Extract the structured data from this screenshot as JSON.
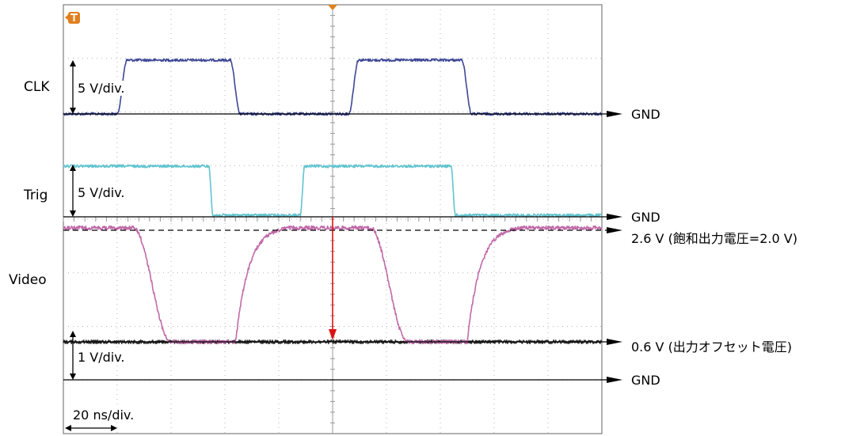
{
  "chart_data": {
    "type": "line",
    "title": "",
    "time_scale_label": "20 ns/div.",
    "channels": [
      {
        "name": "CLK",
        "scale_label": "5 V/div.",
        "color": "#3d4796"
      },
      {
        "name": "Trig",
        "scale_label": "5 V/div.",
        "color": "#62c4cf"
      },
      {
        "name": "Video",
        "scale_label": "1 V/div.",
        "color": "#c06aa8",
        "offset_color": "#333333"
      }
    ],
    "reference_levels": [
      {
        "label": "GND",
        "channel": "CLK"
      },
      {
        "label": "GND",
        "channel": "Trig"
      },
      {
        "label": "2.6 V (飽和出力電圧=2.0 V)",
        "channel": "Video",
        "dashed": true
      },
      {
        "label": "0.6 V (出力オフセット電圧)",
        "channel": "Video"
      },
      {
        "label": "GND",
        "channel": "Video"
      }
    ],
    "grid": true,
    "divisions": {
      "x": 10,
      "y": 8
    },
    "trigger_color": "#e08020",
    "marker_color": "#dd1111",
    "clk_transitions_div": {
      "rise": [
        1.0,
        5.3
      ],
      "fall": [
        3.1,
        7.4
      ]
    },
    "trig_transitions_div": {
      "rise": [
        4.4
      ],
      "fall": [
        2.7,
        7.2
      ]
    },
    "video_low_start_div": [
      1.3,
      5.7
    ],
    "video_low_end_div": [
      3.2,
      7.5
    ]
  }
}
